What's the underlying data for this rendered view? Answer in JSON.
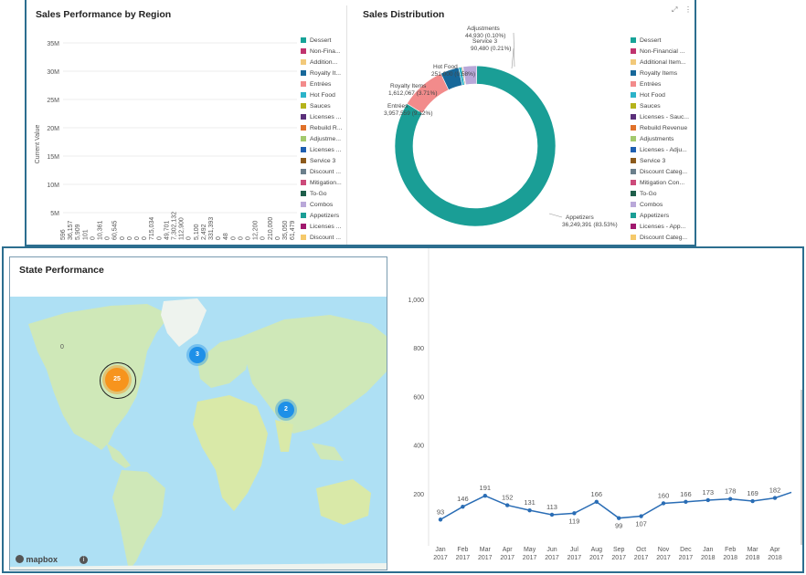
{
  "region_panel": {
    "title": "Sales Performance by Region",
    "ylabel": "Current Value",
    "y_ticks": [
      "35M",
      "30M",
      "25M",
      "20M",
      "15M",
      "10M",
      "5M"
    ],
    "bar_values": [
      "596",
      "36,157",
      "5,909",
      "101",
      "0",
      "10,361",
      "0",
      "60,545",
      "0",
      "0",
      "0",
      "0",
      "715,034",
      "0",
      "49,701",
      "7,302,132",
      "112,900",
      "0",
      "5,100",
      "2,492",
      "331,393",
      "0",
      "48",
      "0",
      "0",
      "0",
      "12,200",
      "0",
      "210,000",
      "0",
      "35,050",
      "61,479"
    ]
  },
  "distribution_panel": {
    "title": "Sales Distribution",
    "slices": [
      {
        "label": "Appetizers",
        "value_text": "36,249,391 (83.53%)",
        "color": "#1a9e96"
      },
      {
        "label": "Entrées",
        "value_text": "3,957,559 (9.12%)",
        "color": "#f28b8b"
      },
      {
        "label": "Royalty Items",
        "value_text": "1,612,067 (3.71%)",
        "color": "#17689a"
      },
      {
        "label": "Hot Food",
        "value_text": "251,000 (0.58%)",
        "color": "#2bb3c9"
      },
      {
        "label": "Service 3",
        "value_text": "90,480 (0.21%)",
        "color": "#8c5a1c"
      },
      {
        "label": "Adjustments",
        "value_text": "44,930 (0.10%)",
        "color": "#a3c96d"
      }
    ]
  },
  "legend": [
    {
      "label": "Dessert",
      "color": "#17a398"
    },
    {
      "label": "Non-Fina...",
      "color": "#c0336e"
    },
    {
      "label": "Addition...",
      "color": "#f2c97a"
    },
    {
      "label": "Royalty It...",
      "color": "#17689a"
    },
    {
      "label": "Entrées",
      "color": "#f28b8b"
    },
    {
      "label": "Hot Food",
      "color": "#2bb3c9"
    },
    {
      "label": "Sauces",
      "color": "#b5b31a"
    },
    {
      "label": "Licenses ...",
      "color": "#5a2f7a"
    },
    {
      "label": "Rebuild R...",
      "color": "#e0712a"
    },
    {
      "label": "Adjustme...",
      "color": "#a3c96d"
    },
    {
      "label": "Licenses ...",
      "color": "#1f5fb0"
    },
    {
      "label": "Service 3",
      "color": "#8c5a1c"
    },
    {
      "label": "Discount ...",
      "color": "#6b7f8c"
    },
    {
      "label": "Mitigation...",
      "color": "#cc4a7a"
    },
    {
      "label": "To-Go",
      "color": "#1e5e4a"
    },
    {
      "label": "Combos",
      "color": "#b9a8d9"
    },
    {
      "label": "Appetizers",
      "color": "#1a9e96"
    },
    {
      "label": "Licenses ...",
      "color": "#a0186e"
    },
    {
      "label": "Discount ...",
      "color": "#f5c96a"
    }
  ],
  "legend2": [
    {
      "label": "Dessert",
      "color": "#17a398"
    },
    {
      "label": "Non-Financial ...",
      "color": "#c0336e"
    },
    {
      "label": "Additional Item...",
      "color": "#f2c97a"
    },
    {
      "label": "Royalty Items",
      "color": "#17689a"
    },
    {
      "label": "Entrées",
      "color": "#f28b8b"
    },
    {
      "label": "Hot Food",
      "color": "#2bb3c9"
    },
    {
      "label": "Sauces",
      "color": "#b5b31a"
    },
    {
      "label": "Licenses - Sauc...",
      "color": "#5a2f7a"
    },
    {
      "label": "Rebuild Revenue",
      "color": "#e0712a"
    },
    {
      "label": "Adjustments",
      "color": "#a3c96d"
    },
    {
      "label": "Licenses - Adju...",
      "color": "#1f5fb0"
    },
    {
      "label": "Service 3",
      "color": "#8c5a1c"
    },
    {
      "label": "Discount Categ...",
      "color": "#6b7f8c"
    },
    {
      "label": "Mitigation Con...",
      "color": "#cc4a7a"
    },
    {
      "label": "To-Go",
      "color": "#1e5e4a"
    },
    {
      "label": "Combos",
      "color": "#b9a8d9"
    },
    {
      "label": "Appetizers",
      "color": "#1a9e96"
    },
    {
      "label": "Licenses - App...",
      "color": "#a0186e"
    },
    {
      "label": "Discount Categ...",
      "color": "#f5c96a"
    }
  ],
  "map_panel": {
    "title": "State Performance",
    "clusters": [
      {
        "count": "25",
        "color": "#f7941d"
      },
      {
        "count": "3",
        "color": "#1e90e8"
      },
      {
        "count": "2",
        "color": "#1e90e8"
      }
    ],
    "attribution": "mapbox",
    "info": "i",
    "edge_label": "0"
  },
  "chart_data": {
    "type": "line",
    "x": [
      "Jan 2017",
      "Feb 2017",
      "Mar 2017",
      "Apr 2017",
      "May 2017",
      "Jun 2017",
      "Jul 2017",
      "Aug 2017",
      "Sep 2017",
      "Oct 2017",
      "Nov 2017",
      "Dec 2017",
      "Jan 2018",
      "Feb 2018",
      "Mar 2018",
      "Apr 2018"
    ],
    "x_labels": [
      [
        "Jan",
        "2017"
      ],
      [
        "Feb",
        "2017"
      ],
      [
        "Mar",
        "2017"
      ],
      [
        "Apr",
        "2017"
      ],
      [
        "May",
        "2017"
      ],
      [
        "Jun",
        "2017"
      ],
      [
        "Jul",
        "2017"
      ],
      [
        "Aug",
        "2017"
      ],
      [
        "Sep",
        "2017"
      ],
      [
        "Oct",
        "2017"
      ],
      [
        "Nov",
        "2017"
      ],
      [
        "Dec",
        "2017"
      ],
      [
        "Jan",
        "2018"
      ],
      [
        "Feb",
        "2018"
      ],
      [
        "Mar",
        "2018"
      ],
      [
        "Apr",
        "2018"
      ]
    ],
    "values": [
      93,
      146,
      191,
      152,
      131,
      113,
      119,
      166,
      99,
      107,
      160,
      166,
      173,
      178,
      169,
      182
    ],
    "y_ticks": [
      "1,000",
      "800",
      "600",
      "400",
      "200"
    ],
    "ylim": [
      0,
      1100
    ],
    "color": "#2a6db5"
  }
}
